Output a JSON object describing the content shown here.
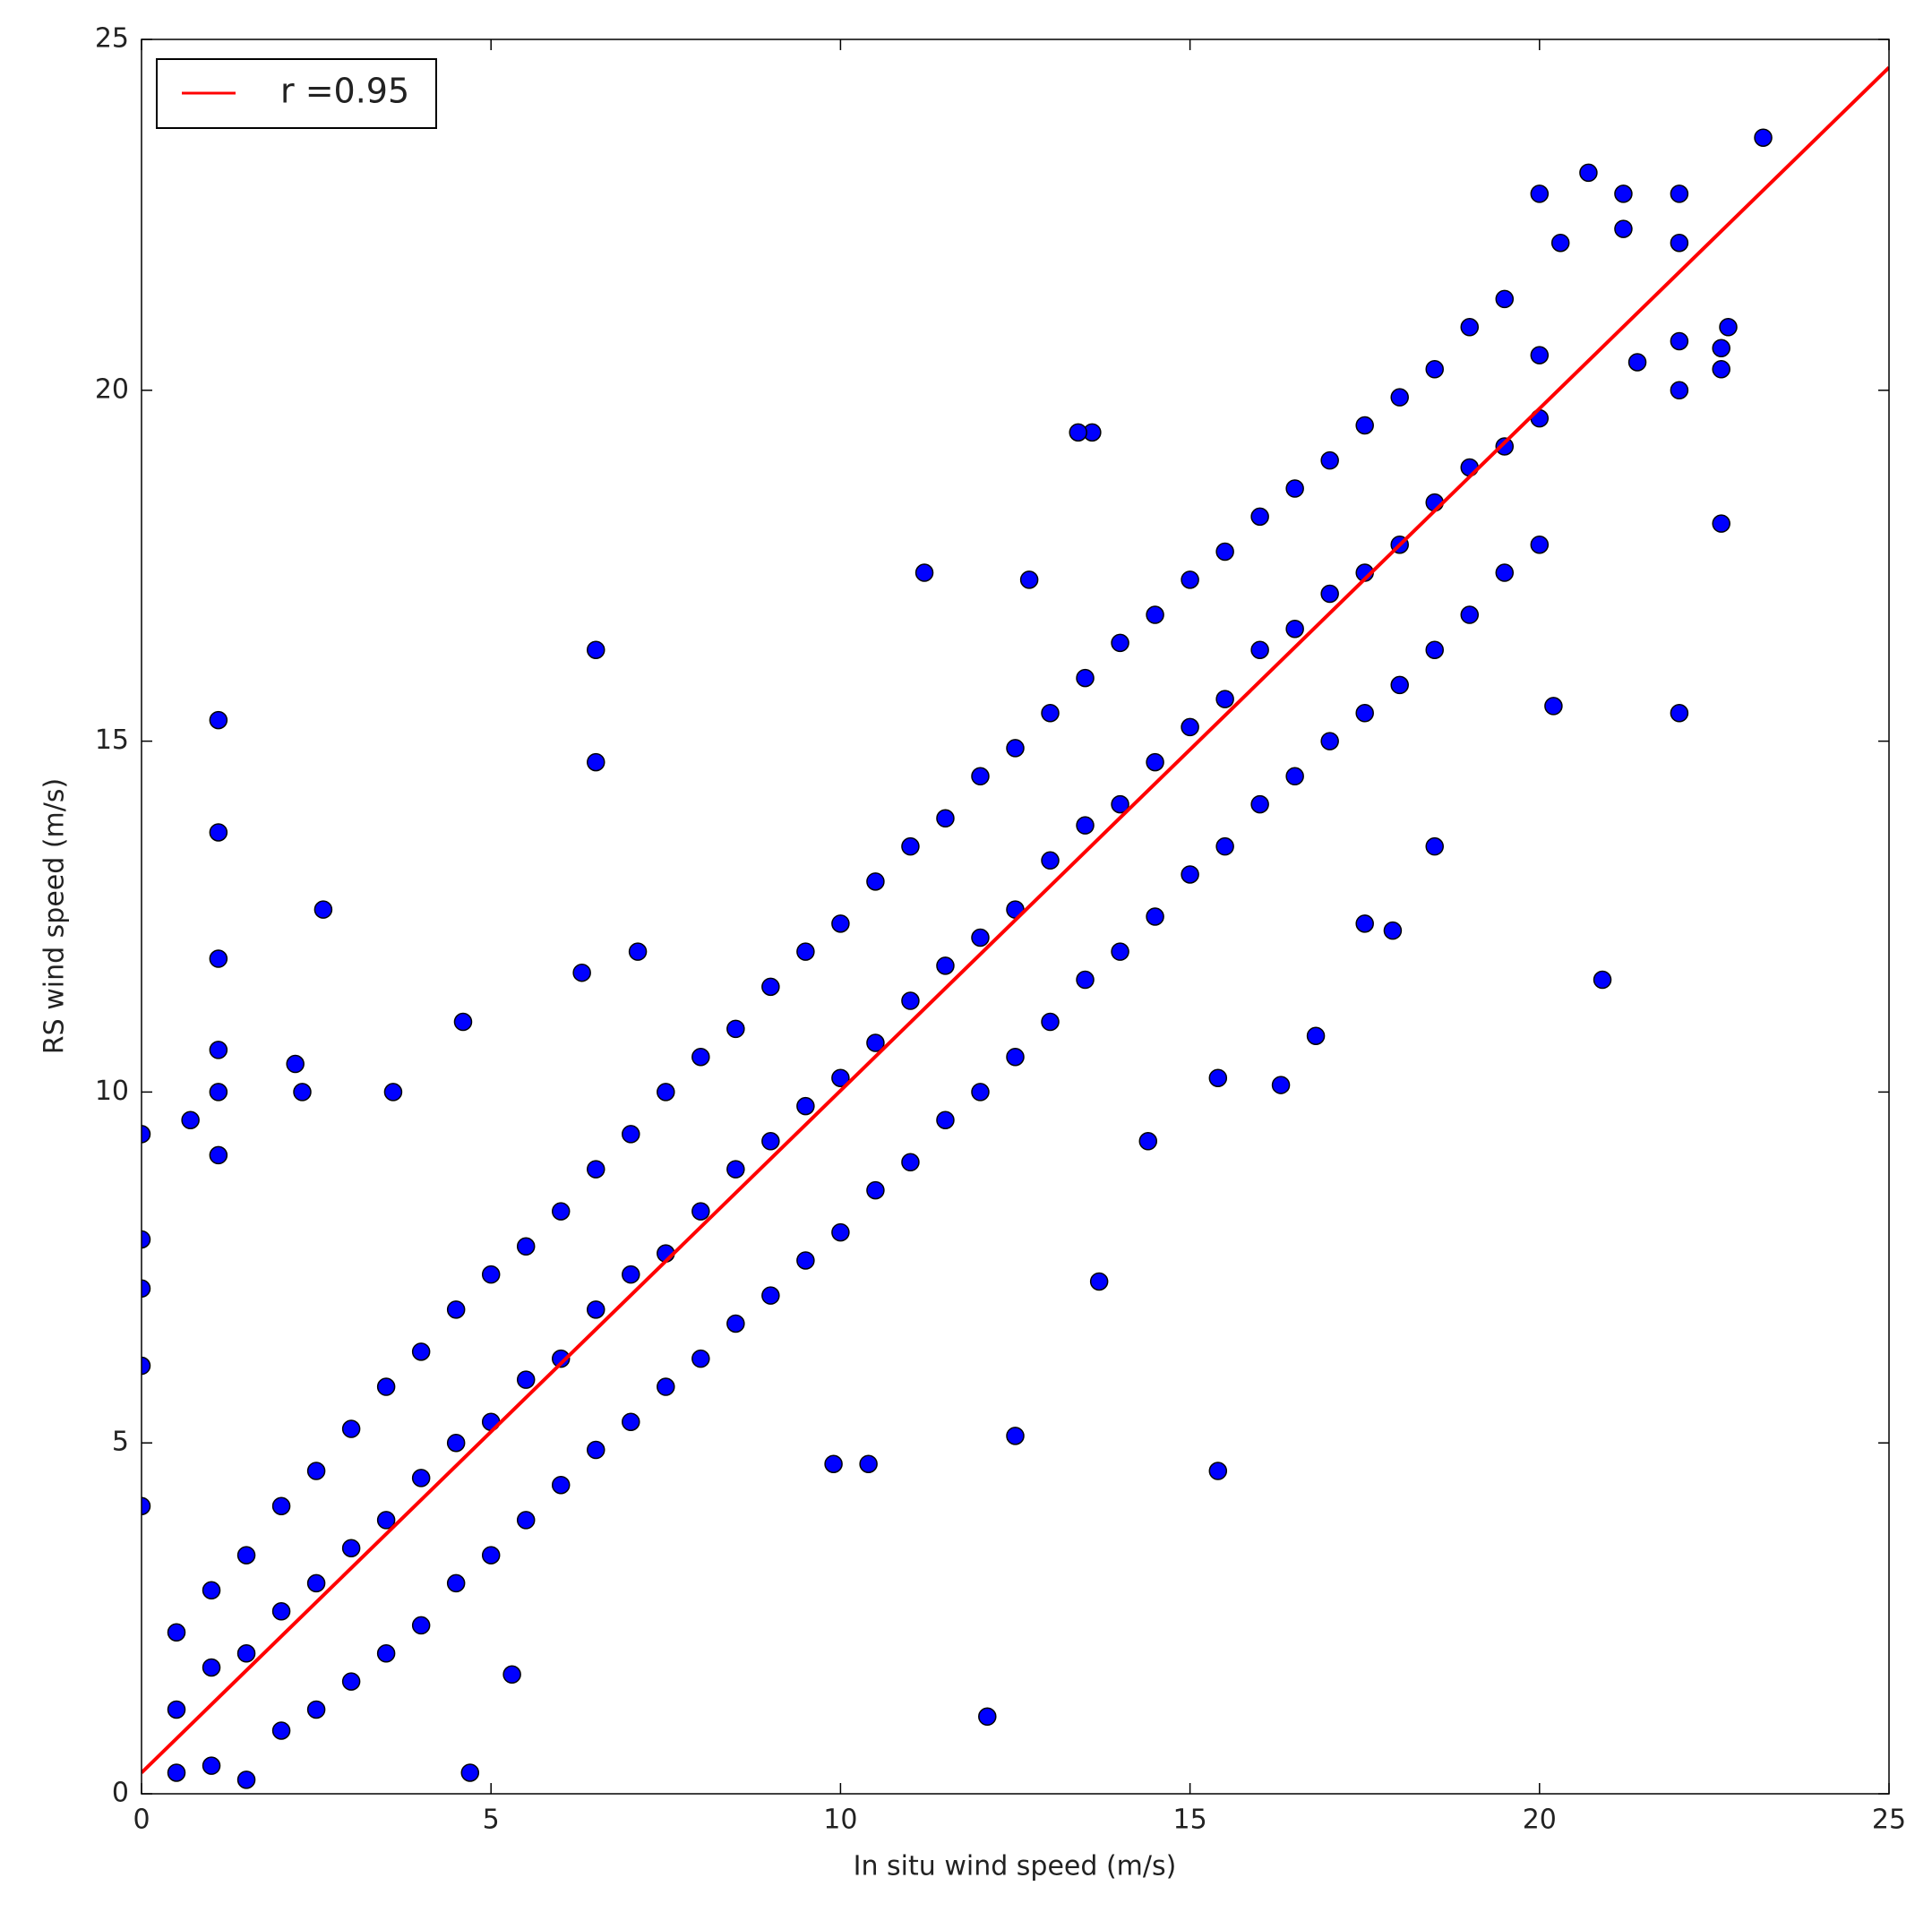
{
  "chart_data": {
    "type": "scatter",
    "xlabel": "In situ wind speed (m/s)",
    "ylabel": "RS wind speed (m/s)",
    "xlim": [
      0,
      25
    ],
    "ylim": [
      0,
      25
    ],
    "xticks": [
      0,
      5,
      10,
      15,
      20,
      25
    ],
    "yticks": [
      0,
      5,
      10,
      15,
      20,
      25
    ],
    "legend": "upper left",
    "series": [
      {
        "type": "scatter",
        "color": "#0000ff",
        "x": [
          0.5,
          0.5,
          0.5,
          1.0,
          1.0,
          1.0,
          1.5,
          1.5,
          1.5,
          2.0,
          2.0,
          2.0,
          2.5,
          2.5,
          2.5,
          3.0,
          3.0,
          3.0,
          3.5,
          3.5,
          3.5,
          4.0,
          4.0,
          4.0,
          4.5,
          4.5,
          4.5,
          5.0,
          5.0,
          5.0,
          5.5,
          5.5,
          5.5,
          6.0,
          6.0,
          6.0,
          6.5,
          6.5,
          6.5,
          7.0,
          7.0,
          7.0,
          7.5,
          7.5,
          7.5,
          8.0,
          8.0,
          8.0,
          8.5,
          8.5,
          8.5,
          9.0,
          9.0,
          9.0,
          9.5,
          9.5,
          9.5,
          10.0,
          10.0,
          10.0,
          10.5,
          10.5,
          10.5,
          11.0,
          11.0,
          11.0,
          11.5,
          11.5,
          11.5,
          12.0,
          12.0,
          12.0,
          12.5,
          12.5,
          12.5,
          13.0,
          13.0,
          13.0,
          13.5,
          13.5,
          13.5,
          14.0,
          14.0,
          14.0,
          14.5,
          14.5,
          14.5,
          15.0,
          15.0,
          15.0,
          15.5,
          15.5,
          15.5,
          16.0,
          16.0,
          16.0,
          16.5,
          16.5,
          16.5,
          17.0,
          17.0,
          17.0,
          17.5,
          17.5,
          17.5,
          18.0,
          18.0,
          18.0,
          18.5,
          18.5,
          18.5,
          19.0,
          19.0,
          19.0,
          19.5,
          19.5,
          19.5,
          20.0,
          20.0,
          20.0,
          1.1,
          1.1,
          1.1,
          1.1,
          1.1,
          1.1,
          2.6,
          6.5,
          6.5,
          12.1,
          15.4,
          12.5,
          10.4,
          9.9,
          4.7,
          5.3,
          13.7,
          14.4,
          16.3,
          15.4,
          20.9,
          22,
          20.2,
          22.6,
          23.2,
          20.7,
          21.2,
          22,
          20,
          20.3,
          21.2,
          22,
          22.7,
          22.6,
          22.6,
          22,
          22,
          21.4,
          0,
          0,
          0,
          0,
          0,
          0.7,
          2.2,
          2.3,
          3.6,
          4.6,
          16.8,
          17.5,
          17.9,
          13.6,
          13.4,
          18.5,
          11.2,
          12.7,
          7.1,
          6.3
        ],
        "values": [
          0.3,
          1.2,
          2.3,
          0.4,
          1.8,
          2.9,
          0.2,
          2.0,
          3.4,
          0.9,
          2.6,
          4.1,
          1.2,
          3.0,
          4.6,
          1.6,
          3.5,
          5.2,
          2.0,
          3.9,
          5.8,
          2.4,
          4.5,
          6.3,
          3.0,
          5.0,
          6.9,
          3.4,
          5.3,
          7.4,
          3.9,
          5.9,
          7.8,
          4.4,
          6.2,
          8.3,
          4.9,
          6.9,
          8.9,
          5.3,
          7.4,
          9.4,
          5.8,
          7.7,
          10.0,
          6.2,
          8.3,
          10.5,
          6.7,
          8.9,
          10.9,
          7.1,
          9.3,
          11.5,
          7.6,
          9.8,
          12.0,
          8.0,
          10.2,
          12.4,
          8.6,
          10.7,
          13.0,
          9.0,
          11.3,
          13.5,
          9.6,
          11.8,
          13.9,
          10.0,
          12.2,
          14.5,
          10.5,
          12.6,
          14.9,
          11.0,
          13.3,
          15.4,
          11.6,
          13.8,
          15.9,
          12.0,
          14.1,
          16.4,
          12.5,
          14.7,
          16.8,
          13.1,
          15.2,
          17.3,
          13.5,
          15.6,
          17.7,
          14.1,
          16.3,
          18.2,
          14.5,
          16.6,
          18.6,
          15.0,
          17.1,
          19.0,
          15.4,
          17.4,
          19.5,
          15.8,
          17.8,
          19.9,
          16.3,
          18.4,
          20.3,
          16.8,
          18.9,
          20.9,
          17.4,
          19.2,
          21.3,
          17.8,
          19.6,
          20.5,
          15.3,
          13.7,
          11.9,
          10.6,
          10,
          9.1,
          12.6,
          16.3,
          14.7,
          1.1,
          4.6,
          5.1,
          4.7,
          4.7,
          0.3,
          1.7,
          7.3,
          9.3,
          10.1,
          10.2,
          11.6,
          15.4,
          15.5,
          18.1,
          23.6,
          23.1,
          22.8,
          22.8,
          22.8,
          22.1,
          22.3,
          22.1,
          20.9,
          20.6,
          20.3,
          20.7,
          20,
          20.4,
          9.4,
          7.9,
          7.2,
          6.1,
          4.1,
          9.6,
          10.4,
          10,
          10,
          11,
          10.8,
          12.4,
          12.3,
          19.4,
          19.4,
          13.5,
          17.4,
          17.3,
          12,
          11.7
        ]
      },
      {
        "type": "line",
        "name": "r =0.95",
        "color": "#ff0000",
        "x": [
          0,
          25
        ],
        "values": [
          0.3,
          24.6
        ]
      }
    ]
  }
}
